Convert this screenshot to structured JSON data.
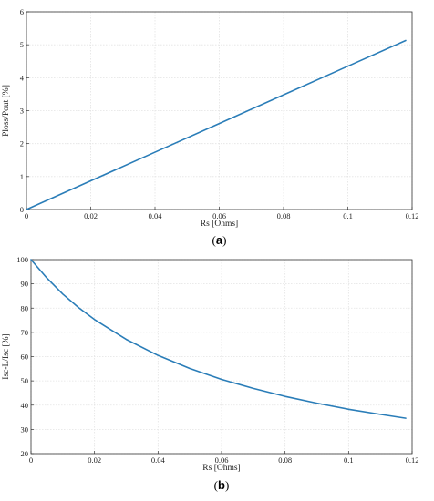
{
  "chart_data": [
    {
      "type": "line",
      "caption": "a",
      "xlabel": "Rs [Ohms]",
      "ylabel": "Ploss/Pout [%]",
      "xlim": [
        0,
        0.12
      ],
      "ylim": [
        0,
        6
      ],
      "xticks": [
        0,
        0.02,
        0.04,
        0.06,
        0.08,
        0.1,
        0.12
      ],
      "yticks": [
        0,
        1,
        2,
        3,
        4,
        5,
        6
      ],
      "xtick_labels": [
        "0",
        "0.02",
        "0.04",
        "0.06",
        "0.08",
        "0.1",
        "0.12"
      ],
      "ytick_labels": [
        "0",
        "1",
        "2",
        "3",
        "4",
        "5",
        "6"
      ],
      "grid": true,
      "color": "#2a7db8",
      "series": [
        {
          "x": [
            0,
            0.02,
            0.04,
            0.06,
            0.08,
            0.1,
            0.118
          ],
          "y": [
            0,
            0.87,
            1.74,
            2.61,
            3.48,
            4.35,
            5.13
          ]
        }
      ]
    },
    {
      "type": "line",
      "caption": "b",
      "xlabel": "Rs [Ohms]",
      "ylabel": "Isc-L/Isc [%]",
      "xlim": [
        0,
        0.12
      ],
      "ylim": [
        20,
        100
      ],
      "xticks": [
        0,
        0.02,
        0.04,
        0.06,
        0.08,
        0.1,
        0.12
      ],
      "yticks": [
        20,
        30,
        40,
        50,
        60,
        70,
        80,
        90,
        100
      ],
      "xtick_labels": [
        "0",
        "0.02",
        "0.04",
        "0.06",
        "0.08",
        "0.1",
        "0.12"
      ],
      "ytick_labels": [
        "20",
        "30",
        "40",
        "50",
        "60",
        "70",
        "80",
        "90",
        "100"
      ],
      "grid": true,
      "color": "#2a7db8",
      "series": [
        {
          "x": [
            0,
            0.005,
            0.01,
            0.015,
            0.02,
            0.03,
            0.04,
            0.05,
            0.06,
            0.07,
            0.08,
            0.09,
            0.1,
            0.11,
            0.118
          ],
          "y": [
            100,
            92.4,
            85.8,
            80.2,
            75.3,
            67.1,
            60.5,
            55.1,
            50.6,
            46.9,
            43.6,
            40.8,
            38.3,
            36.2,
            34.6
          ]
        }
      ]
    }
  ]
}
